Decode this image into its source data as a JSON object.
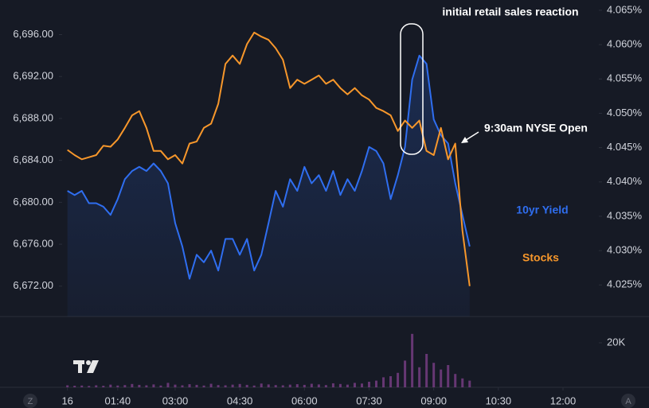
{
  "chart_data": {
    "type": "line",
    "x": [
      30,
      40,
      50,
      60,
      70,
      80,
      90,
      100,
      110,
      120,
      130,
      140,
      150,
      160,
      170,
      180,
      190,
      200,
      210,
      220,
      230,
      240,
      250,
      260,
      270,
      280,
      290,
      300,
      310,
      320,
      330,
      340,
      350,
      360,
      370,
      380,
      390,
      400,
      410,
      420,
      430,
      440,
      450,
      460,
      470,
      480,
      490,
      500,
      510,
      520,
      530,
      540,
      550,
      560,
      570,
      580,
      590
    ],
    "xlim": [
      22.6,
      812
    ],
    "xticks": [
      {
        "value": 30,
        "label": "16"
      },
      {
        "value": 100,
        "label": "01:40"
      },
      {
        "value": 180,
        "label": "03:00"
      },
      {
        "value": 270,
        "label": "04:30"
      },
      {
        "value": 360,
        "label": "06:00"
      },
      {
        "value": 450,
        "label": "07:30"
      },
      {
        "value": 540,
        "label": "09:00"
      },
      {
        "value": 630,
        "label": "10:30"
      },
      {
        "value": 720,
        "label": "12:00"
      }
    ],
    "ylim": [
      6669.1,
      6699.3
    ],
    "yticks": [
      {
        "value": 6672,
        "label": "6,672.00"
      },
      {
        "value": 6676,
        "label": "6,676.00"
      },
      {
        "value": 6680,
        "label": "6,680.00"
      },
      {
        "value": 6684,
        "label": "6,684.00"
      },
      {
        "value": 6688,
        "label": "6,688.00"
      },
      {
        "value": 6692,
        "label": "6,692.00"
      },
      {
        "value": 6696,
        "label": "6,696.00"
      }
    ],
    "y2lim": [
      4.0204,
      4.0665
    ],
    "y2ticks": [
      {
        "value": 4.025,
        "label": "4.025%"
      },
      {
        "value": 4.03,
        "label": "4.030%"
      },
      {
        "value": 4.035,
        "label": "4.035%"
      },
      {
        "value": 4.04,
        "label": "4.040%"
      },
      {
        "value": 4.045,
        "label": "4.045%"
      },
      {
        "value": 4.05,
        "label": "4.050%"
      },
      {
        "value": 4.055,
        "label": "4.055%"
      },
      {
        "value": 4.06,
        "label": "4.060%"
      },
      {
        "value": 4.065,
        "label": "4.065%"
      }
    ],
    "grid": false,
    "series": [
      {
        "name": "Stocks",
        "color": "#f7972b",
        "values": [
          6685.0,
          6684.5,
          6684.1,
          6684.3,
          6684.5,
          6685.4,
          6685.3,
          6686.0,
          6687.1,
          6688.3,
          6688.7,
          6687.1,
          6684.9,
          6684.9,
          6684.1,
          6684.5,
          6683.7,
          6685.6,
          6685.8,
          6687.1,
          6687.5,
          6689.4,
          6693.2,
          6694.0,
          6693.2,
          6695.1,
          6696.2,
          6695.8,
          6695.5,
          6694.7,
          6693.6,
          6690.9,
          6691.7,
          6691.3,
          6691.7,
          6692.1,
          6691.3,
          6691.7,
          6690.9,
          6690.3,
          6690.9,
          6690.2,
          6689.8,
          6689.0,
          6688.7,
          6688.3,
          6686.8,
          6687.8,
          6687.1,
          6687.8,
          6684.9,
          6684.5,
          6687.1,
          6684.1,
          6685.6,
          6677.3,
          6672.0
        ]
      },
      {
        "name": "10yr Yield",
        "color": "#2f6ef0",
        "axis": "y2",
        "values": [
          4.0387,
          4.0381,
          4.0387,
          4.0369,
          4.0369,
          4.0364,
          4.0352,
          4.0375,
          4.0404,
          4.0416,
          4.0422,
          4.0416,
          4.0427,
          4.0416,
          4.0398,
          4.034,
          4.0306,
          4.0259,
          4.0294,
          4.0283,
          4.03,
          4.0271,
          4.0317,
          4.0317,
          4.0294,
          4.0317,
          4.0271,
          4.0294,
          4.034,
          4.0387,
          4.0364,
          4.0404,
          4.0387,
          4.0422,
          4.0398,
          4.041,
          4.0387,
          4.0416,
          4.0381,
          4.0404,
          4.0387,
          4.0416,
          4.0451,
          4.0445,
          4.0427,
          4.0375,
          4.041,
          4.0451,
          4.0549,
          4.0584,
          4.0572,
          4.0491,
          4.0468,
          4.0456,
          4.0398,
          4.0352,
          4.0306
        ]
      }
    ],
    "volume": {
      "color": "#7b3f87",
      "ylim": [
        0,
        31071
      ],
      "yticks": [
        {
          "value": 20000,
          "label": "20K"
        }
      ],
      "values": [
        900,
        700,
        800,
        600,
        900,
        700,
        1200,
        800,
        1000,
        1500,
        1100,
        900,
        1300,
        800,
        2000,
        1200,
        900,
        1400,
        1100,
        800,
        1600,
        1000,
        900,
        1200,
        1500,
        1100,
        800,
        1700,
        1300,
        1000,
        900,
        1200,
        1400,
        1100,
        1600,
        1300,
        1000,
        1800,
        1500,
        1200,
        2000,
        1700,
        2500,
        3000,
        4500,
        5000,
        6500,
        12000,
        24000,
        9000,
        15000,
        11000,
        8000,
        10000,
        6000,
        4000,
        3000
      ]
    },
    "annotations": [
      "initial retail sales reaction",
      "9:30am NYSE Open"
    ]
  },
  "controls": {
    "left": "Z",
    "right": "A"
  }
}
